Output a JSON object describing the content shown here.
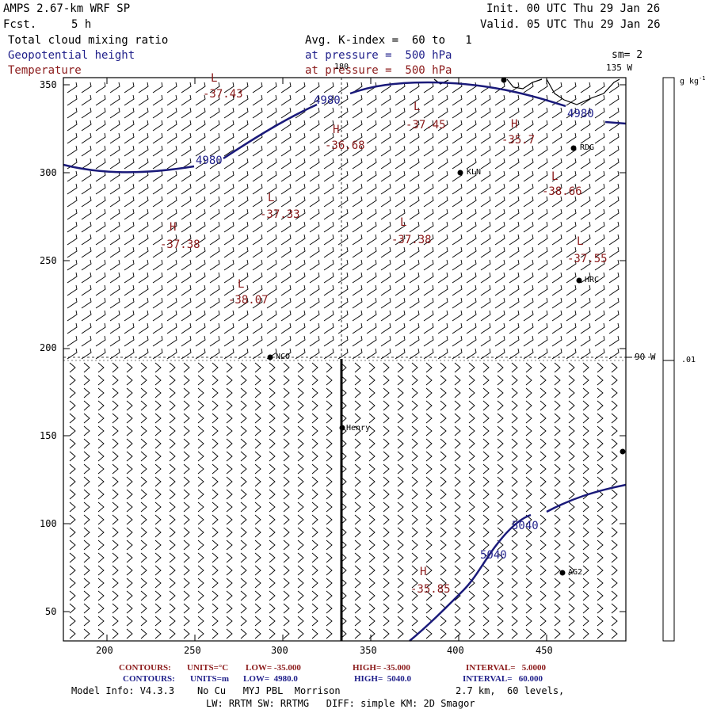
{
  "header": {
    "model": "AMPS 2.67-km WRF SP",
    "fcst_label": "Fcst.",
    "fcst_value": "5 h",
    "init": "Init. 00 UTC Thu 29 Jan 26",
    "valid": "Valid. 05 UTC Thu 29 Jan 26",
    "field1": "Total cloud mixing ratio",
    "field2": "Geopotential height",
    "field3": "Temperature",
    "avg": "Avg. K-index =  60 to   1",
    "press1": "at pressure =  500 hPa",
    "press2": "at pressure =  500 hPa",
    "sm": "sm= 2"
  },
  "map": {
    "x_ticks": [
      "200",
      "250",
      "300",
      "350",
      "400",
      "450"
    ],
    "y_ticks": [
      "350",
      "300",
      "250",
      "200",
      "150",
      "100",
      "50"
    ],
    "lon_label_top": "135 W",
    "lon_label_180": "180",
    "lon_label_right": "90 W",
    "colors": {
      "height": "#1a1a7a",
      "temperature": "#8b1a1a",
      "frame": "#000000"
    }
  },
  "colorbar": {
    "units": "g kg",
    "units_sup": "-1",
    "tick_value": ".01"
  },
  "stations": [
    {
      "name": "RDG"
    },
    {
      "name": "KLN"
    },
    {
      "name": "HRC"
    },
    {
      "name": "NCO"
    },
    {
      "name": "Henry"
    },
    {
      "name": "AG2"
    }
  ],
  "height_labels": [
    "4980",
    "4980",
    "4980",
    "5040",
    "5040"
  ],
  "temp_centers": [
    {
      "type": "L",
      "value": "-37.43"
    },
    {
      "type": "H",
      "value": "-36.68"
    },
    {
      "type": "L",
      "value": "-37.45"
    },
    {
      "type": "H",
      "value": "-35.7"
    },
    {
      "type": "L",
      "value": "-38.66"
    },
    {
      "type": "L",
      "value": "-37.33"
    },
    {
      "type": "H",
      "value": "-37.38"
    },
    {
      "type": "L",
      "value": "-37.38"
    },
    {
      "type": "L",
      "value": "-37.55"
    },
    {
      "type": "L",
      "value": "-38.07"
    },
    {
      "type": "H",
      "value": "-35.85"
    }
  ],
  "footer": {
    "c1_label": "CONTOURS:",
    "c1_units": "UNITS=°C",
    "c1_low": "LOW= -35.000",
    "c1_high": "HIGH= -35.000",
    "c1_int": "INTERVAL=   5.0000",
    "c2_label": "CONTOURS:",
    "c2_units": "UNITS=m",
    "c2_low": "LOW=  4980.0",
    "c2_high": "HIGH=  5040.0",
    "c2_int": "INTERVAL=   60.000",
    "model_info": "Model Info: V4.3.3    No Cu   MYJ PBL  Morrison",
    "resolution": "2.7 km,  60 levels,",
    "physics": "LW: RRTM SW: RRTMG   DIFF: simple KM: 2D Smagor"
  }
}
